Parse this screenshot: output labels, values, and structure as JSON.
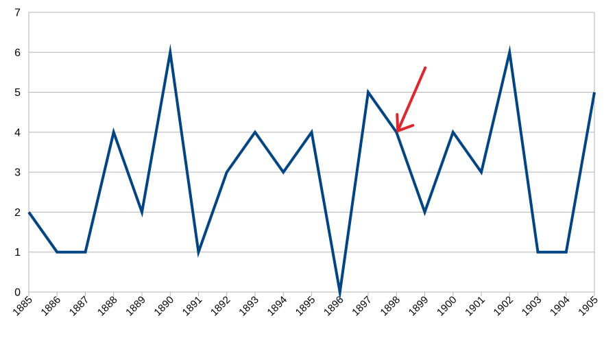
{
  "chart_data": {
    "type": "line",
    "x": [
      "1885",
      "1886",
      "1887",
      "1888",
      "1889",
      "1890",
      "1891",
      "1892",
      "1893",
      "1894",
      "1895",
      "1896",
      "1897",
      "1898",
      "1899",
      "1900",
      "1901",
      "1902",
      "1903",
      "1904",
      "1905"
    ],
    "series": [
      {
        "values": [
          2,
          1,
          1,
          4,
          2,
          6,
          1,
          3,
          4,
          3,
          4,
          0,
          5,
          4,
          2,
          4,
          3,
          6,
          1,
          1,
          5
        ],
        "color": "#004586"
      }
    ],
    "ylim": [
      0,
      7
    ],
    "yticks": [
      "0",
      "1",
      "2",
      "3",
      "4",
      "5",
      "6",
      "7"
    ],
    "grid": "horizontal",
    "annotations": [
      {
        "type": "arrow",
        "color": "#e3242b",
        "points_to": {
          "x": "1898",
          "y": 4
        }
      }
    ]
  }
}
